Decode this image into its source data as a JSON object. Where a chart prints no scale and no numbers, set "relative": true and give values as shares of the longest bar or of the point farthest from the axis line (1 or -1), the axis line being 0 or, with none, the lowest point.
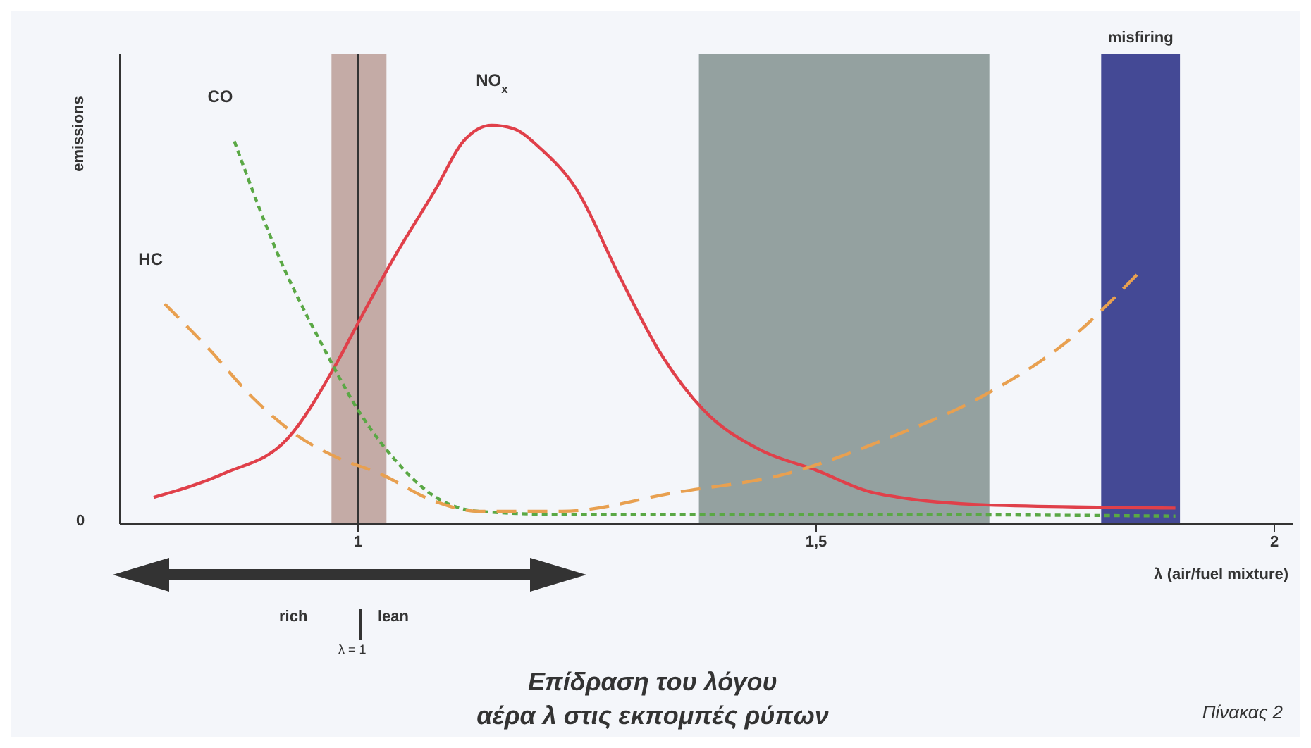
{
  "chart_data": {
    "type": "line",
    "relative": true,
    "title": "Επίδραση του λόγου\nαέρα λ στις  εκπομπές ρύπων",
    "xlabel": "λ (air/fuel mixture)",
    "ylabel": "emissions",
    "xlim": [
      0.74,
      2.02
    ],
    "xticks": [
      {
        "value": 1,
        "label": "1"
      },
      {
        "value": 1.5,
        "label": "1,5"
      },
      {
        "value": 2,
        "label": "2"
      }
    ],
    "series": [
      {
        "name": "NO$_{x}$",
        "color": "#e0404a",
        "line_style": "solid",
        "x": [
          0.777,
          0.854,
          0.923,
          0.977,
          1.0,
          1.038,
          1.085,
          1.115,
          1.146,
          1.169,
          1.2,
          1.238,
          1.285,
          1.331,
          1.377,
          1.438,
          1.5,
          1.562,
          1.685,
          1.892
        ],
        "values": [
          0.067,
          0.127,
          0.214,
          0.405,
          0.504,
          0.663,
          0.841,
          0.96,
          1.0,
          0.992,
          0.94,
          0.841,
          0.623,
          0.425,
          0.286,
          0.187,
          0.135,
          0.079,
          0.048,
          0.04
        ]
      },
      {
        "name": "CO",
        "color": "#5aa845",
        "line_style": "dotted",
        "x": [
          0.865,
          0.915,
          0.962,
          1.0,
          1.038,
          1.085,
          1.131,
          1.223,
          1.531,
          1.892
        ],
        "values": [
          0.96,
          0.663,
          0.444,
          0.286,
          0.167,
          0.067,
          0.032,
          0.024,
          0.024,
          0.02
        ]
      },
      {
        "name": "HC",
        "color": "#e8a050",
        "line_style": "dashed",
        "x": [
          0.789,
          0.838,
          0.885,
          0.931,
          0.977,
          1.023,
          1.085,
          1.131,
          1.223,
          1.346,
          1.469,
          1.577,
          1.685,
          1.777,
          1.854
        ],
        "values": [
          0.552,
          0.437,
          0.317,
          0.226,
          0.167,
          0.127,
          0.056,
          0.032,
          0.032,
          0.079,
          0.127,
          0.214,
          0.325,
          0.464,
          0.635
        ]
      }
    ],
    "ref_lines": [
      {
        "axis": "x",
        "value": 1,
        "color": "#333333"
      }
    ],
    "bands": [
      {
        "axis": "x",
        "from": 1.811,
        "to": 1.897,
        "label": "misfiring",
        "color": "#3a3f8f"
      },
      {
        "axis": "x",
        "from": 1.372,
        "to": 1.689,
        "color": "#1f3a33"
      },
      {
        "axis": "x",
        "from": 0.971,
        "to": 1.031,
        "color": "#8a5040"
      }
    ],
    "annotations": [
      "0",
      "rich",
      "lean",
      "λ = 1",
      "Πίνακας 2"
    ],
    "marker": "none"
  }
}
